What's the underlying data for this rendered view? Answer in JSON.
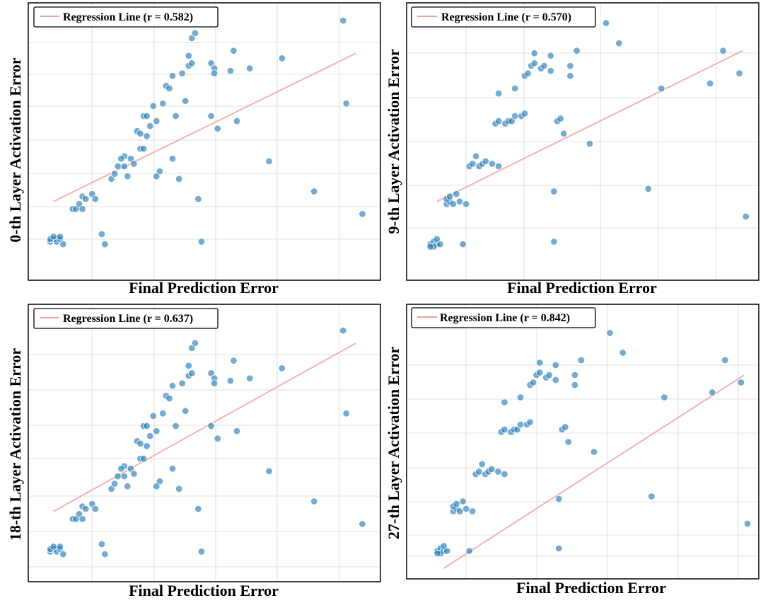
{
  "chart_data": [
    {
      "type": "scatter",
      "xlabel": "Final Prediction Error",
      "ylabel": "0-th Layer  Activation Error",
      "legend": {
        "label": "Regression Line (r = 0.582)",
        "r": 0.582,
        "position": "top-left"
      },
      "xlim": [
        0,
        1
      ],
      "ylim": [
        0,
        1
      ],
      "ticks": "unlabeled",
      "regression": {
        "x0": 0.03,
        "y0": 0.26,
        "x1": 0.97,
        "y1": 0.85
      },
      "points": [
        [
          0.02,
          0.1
        ],
        [
          0.03,
          0.11
        ],
        [
          0.04,
          0.1
        ],
        [
          0.05,
          0.11
        ],
        [
          0.02,
          0.11
        ],
        [
          0.06,
          0.09
        ],
        [
          0.05,
          0.12
        ],
        [
          0.03,
          0.12
        ],
        [
          0.09,
          0.23
        ],
        [
          0.1,
          0.23
        ],
        [
          0.11,
          0.25
        ],
        [
          0.12,
          0.28
        ],
        [
          0.13,
          0.27
        ],
        [
          0.15,
          0.29
        ],
        [
          0.16,
          0.27
        ],
        [
          0.12,
          0.23
        ],
        [
          0.18,
          0.13
        ],
        [
          0.19,
          0.09
        ],
        [
          0.21,
          0.35
        ],
        [
          0.22,
          0.37
        ],
        [
          0.23,
          0.4
        ],
        [
          0.25,
          0.4
        ],
        [
          0.26,
          0.36
        ],
        [
          0.25,
          0.44
        ],
        [
          0.27,
          0.43
        ],
        [
          0.28,
          0.41
        ],
        [
          0.24,
          0.43
        ],
        [
          0.3,
          0.47
        ],
        [
          0.31,
          0.47
        ],
        [
          0.32,
          0.52
        ],
        [
          0.29,
          0.54
        ],
        [
          0.3,
          0.53
        ],
        [
          0.33,
          0.56
        ],
        [
          0.35,
          0.58
        ],
        [
          0.36,
          0.38
        ],
        [
          0.31,
          0.6
        ],
        [
          0.32,
          0.6
        ],
        [
          0.34,
          0.64
        ],
        [
          0.37,
          0.65
        ],
        [
          0.38,
          0.72
        ],
        [
          0.39,
          0.71
        ],
        [
          0.4,
          0.43
        ],
        [
          0.4,
          0.76
        ],
        [
          0.41,
          0.6
        ],
        [
          0.42,
          0.35
        ],
        [
          0.35,
          0.36
        ],
        [
          0.43,
          0.77
        ],
        [
          0.44,
          0.66
        ],
        [
          0.45,
          0.8
        ],
        [
          0.46,
          0.81
        ],
        [
          0.45,
          0.84
        ],
        [
          0.46,
          0.91
        ],
        [
          0.47,
          0.93
        ],
        [
          0.48,
          0.27
        ],
        [
          0.49,
          0.1
        ],
        [
          0.52,
          0.81
        ],
        [
          0.53,
          0.79
        ],
        [
          0.53,
          0.77
        ],
        [
          0.54,
          0.55
        ],
        [
          0.52,
          0.6
        ],
        [
          0.58,
          0.78
        ],
        [
          0.59,
          0.86
        ],
        [
          0.6,
          0.58
        ],
        [
          0.64,
          0.79
        ],
        [
          0.7,
          0.42
        ],
        [
          0.74,
          0.83
        ],
        [
          0.84,
          0.3
        ],
        [
          0.93,
          0.98
        ],
        [
          0.94,
          0.65
        ],
        [
          0.99,
          0.21
        ]
      ]
    },
    {
      "type": "scatter",
      "xlabel": "Final Prediction Error",
      "ylabel": "9-th Layer  Activation Error",
      "legend": {
        "label": "Regression Line (r = 0.570)",
        "r": 0.57,
        "position": "top-left"
      },
      "xlim": [
        0,
        1
      ],
      "ylim": [
        0,
        1
      ],
      "ticks": "unlabeled",
      "regression": {
        "x0": 0.03,
        "y0": 0.26,
        "x1": 0.97,
        "y1": 0.86
      },
      "points": [
        [
          0.01,
          0.09
        ],
        [
          0.02,
          0.1
        ],
        [
          0.03,
          0.09
        ],
        [
          0.02,
          0.08
        ],
        [
          0.04,
          0.09
        ],
        [
          0.01,
          0.08
        ],
        [
          0.03,
          0.11
        ],
        [
          0.06,
          0.25
        ],
        [
          0.07,
          0.26
        ],
        [
          0.08,
          0.25
        ],
        [
          0.06,
          0.27
        ],
        [
          0.07,
          0.28
        ],
        [
          0.09,
          0.29
        ],
        [
          0.1,
          0.26
        ],
        [
          0.11,
          0.09
        ],
        [
          0.12,
          0.25
        ],
        [
          0.13,
          0.4
        ],
        [
          0.14,
          0.41
        ],
        [
          0.15,
          0.44
        ],
        [
          0.16,
          0.4
        ],
        [
          0.17,
          0.41
        ],
        [
          0.18,
          0.42
        ],
        [
          0.2,
          0.41
        ],
        [
          0.22,
          0.4
        ],
        [
          0.21,
          0.57
        ],
        [
          0.22,
          0.58
        ],
        [
          0.24,
          0.57
        ],
        [
          0.25,
          0.58
        ],
        [
          0.26,
          0.58
        ],
        [
          0.27,
          0.6
        ],
        [
          0.29,
          0.6
        ],
        [
          0.3,
          0.61
        ],
        [
          0.22,
          0.69
        ],
        [
          0.27,
          0.71
        ],
        [
          0.3,
          0.76
        ],
        [
          0.31,
          0.77
        ],
        [
          0.32,
          0.8
        ],
        [
          0.33,
          0.85
        ],
        [
          0.33,
          0.81
        ],
        [
          0.35,
          0.79
        ],
        [
          0.36,
          0.8
        ],
        [
          0.38,
          0.84
        ],
        [
          0.38,
          0.78
        ],
        [
          0.39,
          0.1
        ],
        [
          0.39,
          0.3
        ],
        [
          0.4,
          0.58
        ],
        [
          0.41,
          0.59
        ],
        [
          0.42,
          0.53
        ],
        [
          0.44,
          0.76
        ],
        [
          0.44,
          0.8
        ],
        [
          0.46,
          0.86
        ],
        [
          0.5,
          0.49
        ],
        [
          0.55,
          0.97
        ],
        [
          0.59,
          0.89
        ],
        [
          0.68,
          0.31
        ],
        [
          0.72,
          0.71
        ],
        [
          0.87,
          0.73
        ],
        [
          0.91,
          0.86
        ],
        [
          0.96,
          0.77
        ],
        [
          0.98,
          0.2
        ]
      ]
    },
    {
      "type": "scatter",
      "xlabel": "Final Prediction Error",
      "ylabel": "18-th Layer  Activation Error",
      "legend": {
        "label": "Regression Line (r = 0.637)",
        "r": 0.637,
        "position": "top-left"
      },
      "xlim": [
        0,
        1
      ],
      "ylim": [
        0,
        1
      ],
      "ticks": "unlabeled",
      "regression": {
        "x0": 0.03,
        "y0": 0.26,
        "x1": 0.97,
        "y1": 0.93
      },
      "points": [
        [
          0.02,
          0.1
        ],
        [
          0.03,
          0.11
        ],
        [
          0.04,
          0.1
        ],
        [
          0.05,
          0.11
        ],
        [
          0.02,
          0.11
        ],
        [
          0.06,
          0.09
        ],
        [
          0.05,
          0.12
        ],
        [
          0.03,
          0.12
        ],
        [
          0.09,
          0.23
        ],
        [
          0.1,
          0.23
        ],
        [
          0.11,
          0.25
        ],
        [
          0.12,
          0.28
        ],
        [
          0.13,
          0.27
        ],
        [
          0.15,
          0.29
        ],
        [
          0.16,
          0.27
        ],
        [
          0.12,
          0.23
        ],
        [
          0.18,
          0.13
        ],
        [
          0.19,
          0.09
        ],
        [
          0.21,
          0.35
        ],
        [
          0.22,
          0.37
        ],
        [
          0.23,
          0.4
        ],
        [
          0.25,
          0.4
        ],
        [
          0.26,
          0.36
        ],
        [
          0.25,
          0.44
        ],
        [
          0.27,
          0.43
        ],
        [
          0.28,
          0.41
        ],
        [
          0.24,
          0.43
        ],
        [
          0.3,
          0.47
        ],
        [
          0.31,
          0.47
        ],
        [
          0.32,
          0.52
        ],
        [
          0.29,
          0.54
        ],
        [
          0.3,
          0.53
        ],
        [
          0.33,
          0.56
        ],
        [
          0.35,
          0.58
        ],
        [
          0.36,
          0.38
        ],
        [
          0.31,
          0.6
        ],
        [
          0.32,
          0.6
        ],
        [
          0.34,
          0.64
        ],
        [
          0.37,
          0.65
        ],
        [
          0.38,
          0.72
        ],
        [
          0.39,
          0.71
        ],
        [
          0.4,
          0.43
        ],
        [
          0.4,
          0.76
        ],
        [
          0.41,
          0.6
        ],
        [
          0.42,
          0.35
        ],
        [
          0.35,
          0.36
        ],
        [
          0.43,
          0.77
        ],
        [
          0.44,
          0.66
        ],
        [
          0.45,
          0.8
        ],
        [
          0.46,
          0.81
        ],
        [
          0.45,
          0.84
        ],
        [
          0.46,
          0.91
        ],
        [
          0.47,
          0.93
        ],
        [
          0.48,
          0.27
        ],
        [
          0.49,
          0.1
        ],
        [
          0.52,
          0.81
        ],
        [
          0.53,
          0.79
        ],
        [
          0.53,
          0.77
        ],
        [
          0.54,
          0.55
        ],
        [
          0.52,
          0.6
        ],
        [
          0.58,
          0.78
        ],
        [
          0.59,
          0.86
        ],
        [
          0.6,
          0.58
        ],
        [
          0.64,
          0.79
        ],
        [
          0.7,
          0.42
        ],
        [
          0.74,
          0.83
        ],
        [
          0.84,
          0.3
        ],
        [
          0.93,
          0.98
        ],
        [
          0.94,
          0.65
        ],
        [
          0.99,
          0.21
        ]
      ]
    },
    {
      "type": "scatter",
      "xlabel": "Final Prediction Error",
      "ylabel": "27-th Layer  Activation Error",
      "legend": {
        "label": "Regression Line (r = 0.842)",
        "r": 0.842,
        "position": "top-left"
      },
      "xlim": [
        0,
        1
      ],
      "ylim": [
        0,
        1
      ],
      "ticks": "unlabeled",
      "regression": {
        "x0": 0.03,
        "y0": 0.02,
        "x1": 0.97,
        "y1": 0.8
      },
      "points": [
        [
          0.01,
          0.09
        ],
        [
          0.02,
          0.1
        ],
        [
          0.03,
          0.09
        ],
        [
          0.02,
          0.08
        ],
        [
          0.04,
          0.09
        ],
        [
          0.01,
          0.08
        ],
        [
          0.03,
          0.11
        ],
        [
          0.06,
          0.25
        ],
        [
          0.07,
          0.26
        ],
        [
          0.08,
          0.25
        ],
        [
          0.06,
          0.27
        ],
        [
          0.07,
          0.28
        ],
        [
          0.09,
          0.29
        ],
        [
          0.1,
          0.26
        ],
        [
          0.11,
          0.09
        ],
        [
          0.12,
          0.25
        ],
        [
          0.13,
          0.4
        ],
        [
          0.14,
          0.41
        ],
        [
          0.15,
          0.44
        ],
        [
          0.16,
          0.4
        ],
        [
          0.17,
          0.41
        ],
        [
          0.18,
          0.42
        ],
        [
          0.2,
          0.41
        ],
        [
          0.22,
          0.4
        ],
        [
          0.21,
          0.57
        ],
        [
          0.22,
          0.58
        ],
        [
          0.24,
          0.57
        ],
        [
          0.25,
          0.58
        ],
        [
          0.26,
          0.58
        ],
        [
          0.27,
          0.6
        ],
        [
          0.29,
          0.6
        ],
        [
          0.3,
          0.61
        ],
        [
          0.22,
          0.69
        ],
        [
          0.27,
          0.71
        ],
        [
          0.3,
          0.76
        ],
        [
          0.31,
          0.77
        ],
        [
          0.32,
          0.8
        ],
        [
          0.33,
          0.85
        ],
        [
          0.33,
          0.81
        ],
        [
          0.35,
          0.79
        ],
        [
          0.36,
          0.8
        ],
        [
          0.38,
          0.84
        ],
        [
          0.38,
          0.78
        ],
        [
          0.39,
          0.1
        ],
        [
          0.39,
          0.3
        ],
        [
          0.4,
          0.58
        ],
        [
          0.41,
          0.59
        ],
        [
          0.42,
          0.53
        ],
        [
          0.44,
          0.76
        ],
        [
          0.44,
          0.8
        ],
        [
          0.46,
          0.86
        ],
        [
          0.5,
          0.49
        ],
        [
          0.55,
          0.97
        ],
        [
          0.59,
          0.89
        ],
        [
          0.68,
          0.31
        ],
        [
          0.72,
          0.71
        ],
        [
          0.87,
          0.73
        ],
        [
          0.91,
          0.86
        ],
        [
          0.96,
          0.77
        ],
        [
          0.98,
          0.2
        ]
      ]
    }
  ]
}
